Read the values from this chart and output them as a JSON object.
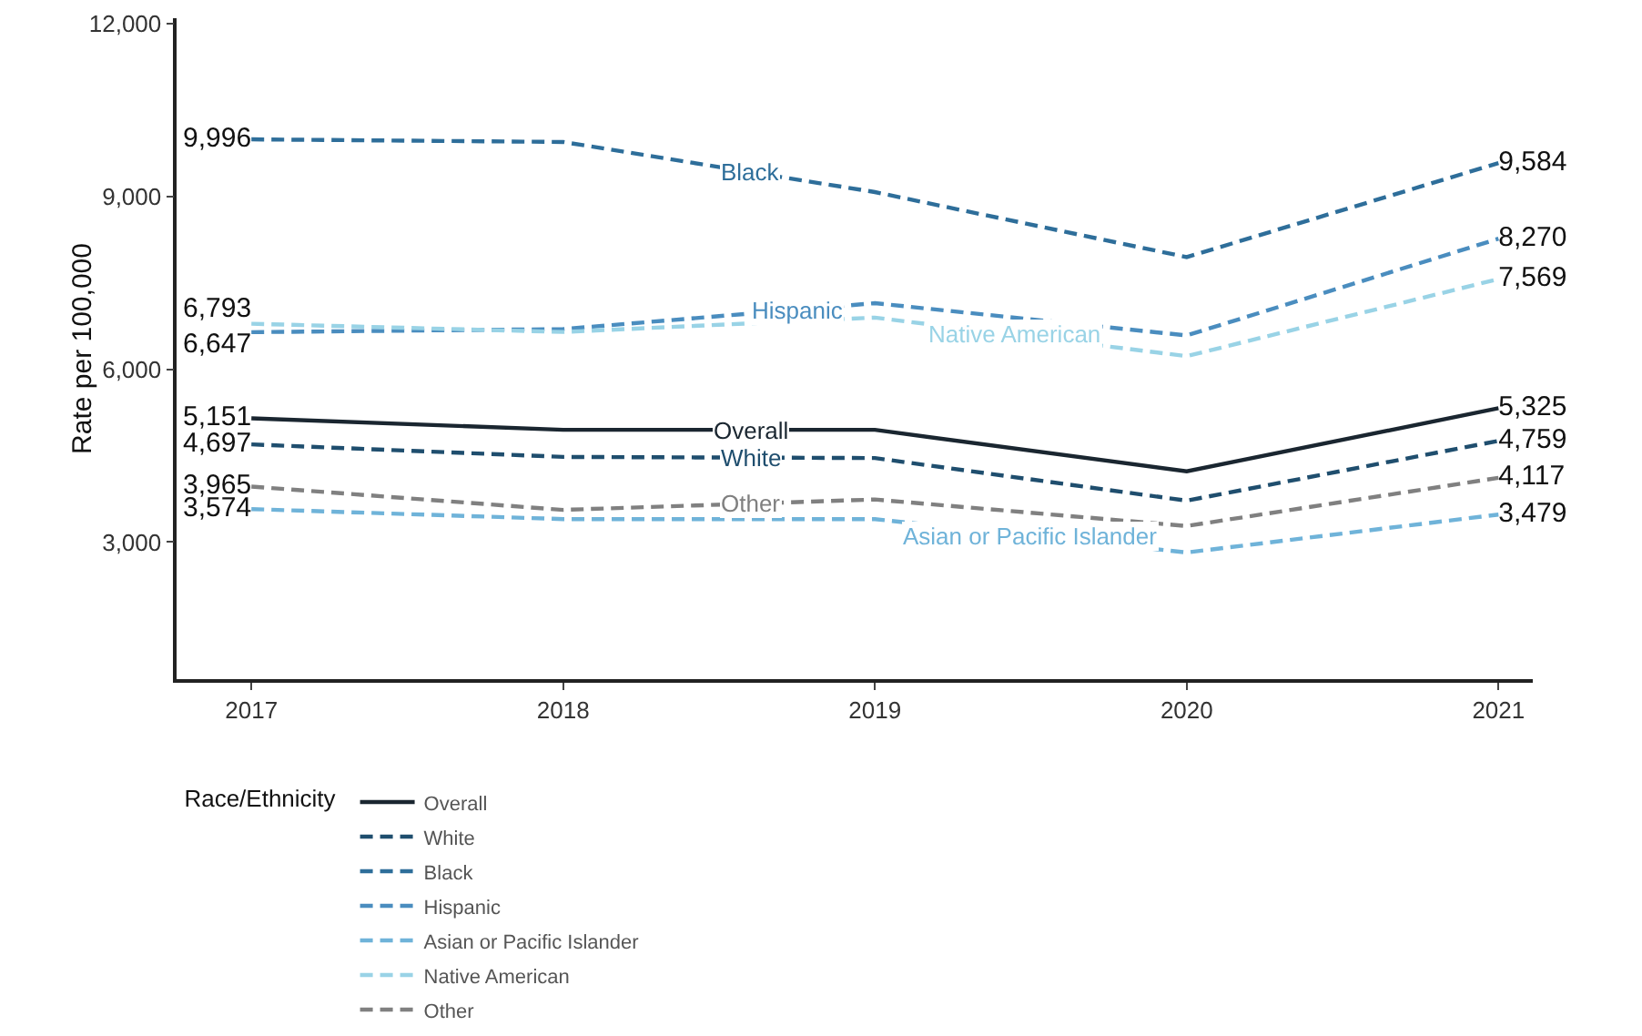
{
  "chart_data": {
    "type": "line",
    "ylabel": "Rate per 100,000",
    "legend_title": "Race/Ethnicity",
    "x": [
      2017,
      2018,
      2019,
      2020,
      2021
    ],
    "series": [
      {
        "name": "Overall",
        "color": "#1a2630",
        "line_style": "solid",
        "values": [
          5151,
          4950,
          4950,
          4230,
          5325
        ],
        "value_labels": [
          "5,151",
          null,
          null,
          null,
          "5,325"
        ]
      },
      {
        "name": "White",
        "color": "#1f4e6e",
        "line_style": "dashed",
        "values": [
          4697,
          4480,
          4460,
          3720,
          4759
        ],
        "value_labels": [
          "4,697",
          null,
          null,
          null,
          "4,759"
        ]
      },
      {
        "name": "Black",
        "color": "#2e6e9a",
        "line_style": "dashed",
        "values": [
          9996,
          9950,
          9080,
          7950,
          9584
        ],
        "value_labels": [
          "9,996",
          null,
          null,
          null,
          "9,584"
        ]
      },
      {
        "name": "Hispanic",
        "color": "#4a8dbf",
        "line_style": "dashed",
        "values": [
          6647,
          6700,
          7150,
          6590,
          8270
        ],
        "value_labels": [
          "6,647",
          null,
          null,
          null,
          "8,270"
        ]
      },
      {
        "name": "Asian or Pacific Islander",
        "color": "#6fb3d9",
        "line_style": "dashed",
        "values": [
          3574,
          3400,
          3400,
          2820,
          3479
        ],
        "value_labels": [
          "3,574",
          null,
          null,
          null,
          "3,479"
        ]
      },
      {
        "name": "Native American",
        "color": "#99d3e6",
        "line_style": "dashed",
        "values": [
          6793,
          6650,
          6900,
          6230,
          7569
        ],
        "value_labels": [
          "6,793",
          null,
          null,
          null,
          "7,569"
        ]
      },
      {
        "name": "Other",
        "color": "#808080",
        "line_style": "dashed",
        "values": [
          3965,
          3560,
          3740,
          3280,
          4117
        ],
        "value_labels": [
          "3,965",
          null,
          null,
          null,
          "4,117"
        ]
      }
    ],
    "annotations": [
      {
        "text": "Overall",
        "x": 2018.6,
        "y": 4950
      },
      {
        "text": "White",
        "x": 2018.6,
        "y": 4468
      },
      {
        "text": "Black",
        "x": 2018.6,
        "y": 9428
      },
      {
        "text": "Hispanic",
        "x": 2018.75,
        "y": 7038
      },
      {
        "text": "Asian or Pacific Islander",
        "x": 2019.5,
        "y": 3110
      },
      {
        "text": "Native American",
        "x": 2019.45,
        "y": 6599
      },
      {
        "text": "Other",
        "x": 2018.6,
        "y": 3668
      }
    ],
    "xlim": [
      2016.76,
      2021.11
    ],
    "xticks": [
      2017,
      2018,
      2019,
      2020,
      2021
    ],
    "ylim": [
      620,
      12100
    ],
    "yticks": [
      {
        "value": 3000,
        "label": "3,000"
      },
      {
        "value": 6000,
        "label": "6,000"
      },
      {
        "value": 9000,
        "label": "9,000"
      },
      {
        "value": 12000,
        "label": "12,000"
      }
    ],
    "grid": false,
    "legend": "bottom",
    "marker": "none"
  }
}
